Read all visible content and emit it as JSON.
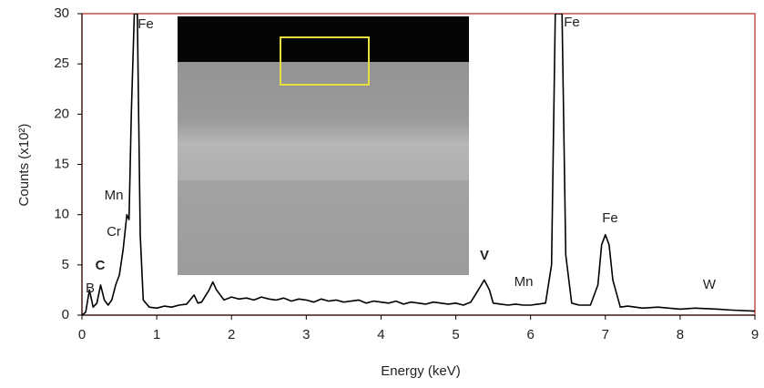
{
  "chart_data": {
    "type": "line",
    "x_label": "Energy (keV)",
    "y_label": "Counts (x10²)",
    "xlim": [
      0,
      9
    ],
    "ylim": [
      0,
      30
    ],
    "xticks": [
      0,
      1,
      2,
      3,
      4,
      5,
      6,
      7,
      8,
      9
    ],
    "yticks": [
      0,
      5,
      10,
      15,
      20,
      25,
      30
    ],
    "grid": false,
    "frame_color": "#c0504d",
    "series": [
      {
        "color": "#000000",
        "x": [
          0,
          0.05,
          0.1,
          0.15,
          0.2,
          0.25,
          0.3,
          0.35,
          0.4,
          0.45,
          0.5,
          0.55,
          0.6,
          0.63,
          0.66,
          0.7,
          0.74,
          0.78,
          0.82,
          0.9,
          1.0,
          1.1,
          1.2,
          1.3,
          1.4,
          1.5,
          1.55,
          1.6,
          1.7,
          1.75,
          1.8,
          1.9,
          2.0,
          2.1,
          2.2,
          2.3,
          2.4,
          2.5,
          2.6,
          2.7,
          2.8,
          2.9,
          3.0,
          3.1,
          3.2,
          3.3,
          3.4,
          3.5,
          3.6,
          3.7,
          3.8,
          3.9,
          4.0,
          4.1,
          4.2,
          4.3,
          4.4,
          4.5,
          4.6,
          4.7,
          4.8,
          4.9,
          5.0,
          5.1,
          5.2,
          5.3,
          5.38,
          5.45,
          5.5,
          5.6,
          5.7,
          5.8,
          5.9,
          6.0,
          6.1,
          6.2,
          6.28,
          6.33,
          6.42,
          6.47,
          6.55,
          6.65,
          6.8,
          6.9,
          6.95,
          7.0,
          7.05,
          7.1,
          7.2,
          7.3,
          7.5,
          7.7,
          8.0,
          8.2,
          8.5,
          8.7,
          9.0
        ],
        "values": [
          0,
          0.3,
          2.5,
          0.8,
          1.2,
          3,
          1.5,
          1,
          1.5,
          3,
          4,
          6.5,
          10,
          9.5,
          20,
          30,
          30,
          8,
          1.5,
          0.8,
          0.7,
          0.9,
          0.8,
          1,
          1.1,
          2,
          1.2,
          1.3,
          2.5,
          3.3,
          2.5,
          1.5,
          1.8,
          1.6,
          1.7,
          1.5,
          1.8,
          1.6,
          1.5,
          1.7,
          1.4,
          1.6,
          1.5,
          1.3,
          1.6,
          1.4,
          1.5,
          1.3,
          1.4,
          1.5,
          1.2,
          1.4,
          1.3,
          1.2,
          1.4,
          1.1,
          1.3,
          1.2,
          1.1,
          1.3,
          1.2,
          1.1,
          1.2,
          1.0,
          1.3,
          2.5,
          3.5,
          2.5,
          1.2,
          1.1,
          1.0,
          1.1,
          1.0,
          1.0,
          1.1,
          1.2,
          5,
          30,
          30,
          6,
          1.2,
          1.0,
          1.0,
          3,
          7,
          8,
          7,
          3.5,
          0.8,
          0.9,
          0.7,
          0.8,
          0.6,
          0.7,
          0.6,
          0.5,
          0.4
        ]
      }
    ],
    "annotations": [
      {
        "text": "B",
        "color": "#a0504d"
      },
      {
        "text": "C",
        "color": "#000000"
      },
      {
        "text": "Cr",
        "color": "#5b5ea6"
      },
      {
        "text": "Mn",
        "color": "#8e44ad"
      },
      {
        "text": "Fe",
        "color": "#3a9a5a"
      },
      {
        "text": "Fe",
        "color": "#3a9a5a"
      },
      {
        "text": "Fe",
        "color": "#3a9a5a"
      },
      {
        "text": "V",
        "color": "#000000"
      },
      {
        "text": "Mn",
        "color": "#8e44ad"
      },
      {
        "text": "W",
        "color": "#e07b39"
      }
    ]
  }
}
